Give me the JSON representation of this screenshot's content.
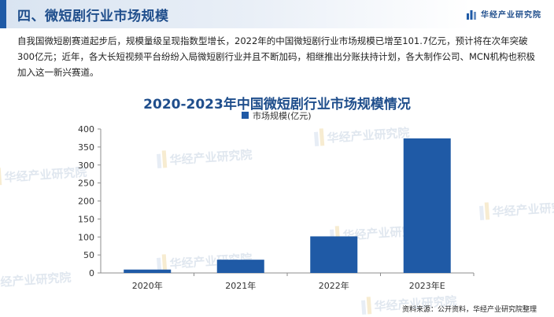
{
  "header": {
    "section_title": "四、微短剧行业市场规模",
    "brand": "华经产业研究院",
    "brand_icon": "bar-logo-icon"
  },
  "intro_text": "自我国微短剧赛道起步后，规模量级呈现指数型增长，2022年的中国微短剧行业市场规模已增至101.7亿元，预计将在次年突破300亿元；近年，各大长短视频平台纷纷入局微短剧行业并且不断加码，相继推出分账扶持计划，各大制作公司、MCN机构也积极加入这一新兴赛道。",
  "watermark": "华经产业研究院",
  "source": "资料来源：公开资料，华经产业研究院整理",
  "colors": {
    "accent": "#1f5aa6",
    "bar": "#1f5aa6",
    "title": "#1f4e8c"
  },
  "chart_data": {
    "type": "bar",
    "title": "2020-2023年中国微短剧行业市场规模情况",
    "categories": [
      "2020年",
      "2021年",
      "2022年",
      "2023年E"
    ],
    "series": [
      {
        "name": "市场规模(亿元)",
        "values": [
          9.4,
          36.8,
          101.7,
          373.9
        ]
      }
    ],
    "ylim": [
      0,
      400
    ],
    "yticks": [
      0,
      50,
      100,
      150,
      200,
      250,
      300,
      350,
      400
    ],
    "legend": "top-center",
    "grid": false
  }
}
